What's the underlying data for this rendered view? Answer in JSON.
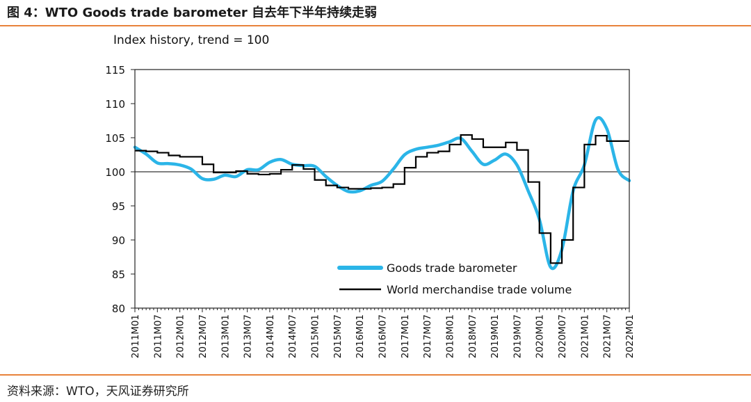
{
  "figure": {
    "title": "图 4：WTO Goods trade barometer 自去年下半年持续走弱",
    "source": "资料来源：WTO，天风证券研究所"
  },
  "chart_data": {
    "type": "line",
    "subtitle": "Index history, trend = 100",
    "ylim": [
      80,
      115
    ],
    "yticks": [
      80,
      85,
      90,
      95,
      100,
      105,
      110,
      115
    ],
    "reference_line": 100,
    "x_labels": [
      "2011M01",
      "2011M07",
      "2012M01",
      "2012M07",
      "2013M01",
      "2013M07",
      "2014M01",
      "2014M07",
      "2015M01",
      "2015M07",
      "2016M01",
      "2016M07",
      "2017M01",
      "2017M07",
      "2018M01",
      "2018M07",
      "2019M01",
      "2019M07",
      "2020M01",
      "2020M07",
      "2021M01",
      "2021M07",
      "2022M01"
    ],
    "legend_position": "lower-right",
    "colors": {
      "barometer": "#2bb5e8",
      "volume": "#000000",
      "reference": "#808080"
    },
    "series": [
      {
        "name": "Goods trade barometer",
        "style": "smooth",
        "x": [
          "2011M01",
          "2011M04",
          "2011M07",
          "2011M10",
          "2012M01",
          "2012M04",
          "2012M07",
          "2012M10",
          "2013M01",
          "2013M04",
          "2013M07",
          "2013M10",
          "2014M01",
          "2014M04",
          "2014M07",
          "2014M10",
          "2015M01",
          "2015M04",
          "2015M07",
          "2015M10",
          "2016M01",
          "2016M04",
          "2016M07",
          "2016M10",
          "2017M01",
          "2017M04",
          "2017M07",
          "2017M10",
          "2018M01",
          "2018M04",
          "2018M07",
          "2018M10",
          "2019M01",
          "2019M04",
          "2019M07",
          "2019M10",
          "2020M01",
          "2020M04",
          "2020M07",
          "2020M10",
          "2021M01",
          "2021M04",
          "2021M07",
          "2021M10",
          "2022M01"
        ],
        "values": [
          103.6,
          102.6,
          101.3,
          101.2,
          101.0,
          100.4,
          99.0,
          98.9,
          99.5,
          99.3,
          100.3,
          100.3,
          101.4,
          101.8,
          101.1,
          100.9,
          100.8,
          99.3,
          98.0,
          97.1,
          97.2,
          98.0,
          98.6,
          100.4,
          102.5,
          103.3,
          103.6,
          103.9,
          104.4,
          104.9,
          103.0,
          101.1,
          101.7,
          102.6,
          101.0,
          97.2,
          93.0,
          86.0,
          88.6,
          97.2,
          101.0,
          107.6,
          106.3,
          100.3,
          98.7
        ]
      },
      {
        "name": "World merchandise trade volume",
        "style": "step",
        "x": [
          "2011M01",
          "2011M04",
          "2011M07",
          "2011M10",
          "2012M01",
          "2012M04",
          "2012M07",
          "2012M10",
          "2013M01",
          "2013M04",
          "2013M07",
          "2013M10",
          "2014M01",
          "2014M04",
          "2014M07",
          "2014M10",
          "2015M01",
          "2015M04",
          "2015M07",
          "2015M10",
          "2016M01",
          "2016M04",
          "2016M07",
          "2016M10",
          "2017M01",
          "2017M04",
          "2017M07",
          "2017M10",
          "2018M01",
          "2018M04",
          "2018M07",
          "2018M10",
          "2019M01",
          "2019M04",
          "2019M07",
          "2019M10",
          "2020M01",
          "2020M04",
          "2020M07",
          "2020M10",
          "2021M01",
          "2021M04",
          "2021M07",
          "2021M10"
        ],
        "values": [
          103.1,
          103.0,
          102.8,
          102.4,
          102.2,
          102.2,
          101.1,
          99.9,
          99.9,
          100.1,
          99.7,
          99.6,
          99.7,
          100.3,
          101.0,
          100.4,
          98.8,
          98.0,
          97.7,
          97.5,
          97.5,
          97.6,
          97.7,
          98.2,
          100.6,
          102.2,
          102.8,
          103.0,
          104.0,
          105.4,
          104.8,
          103.6,
          103.6,
          104.3,
          103.2,
          98.5,
          91.0,
          86.6,
          90.0,
          97.7,
          104.0,
          105.3,
          104.5,
          104.5
        ]
      }
    ]
  }
}
